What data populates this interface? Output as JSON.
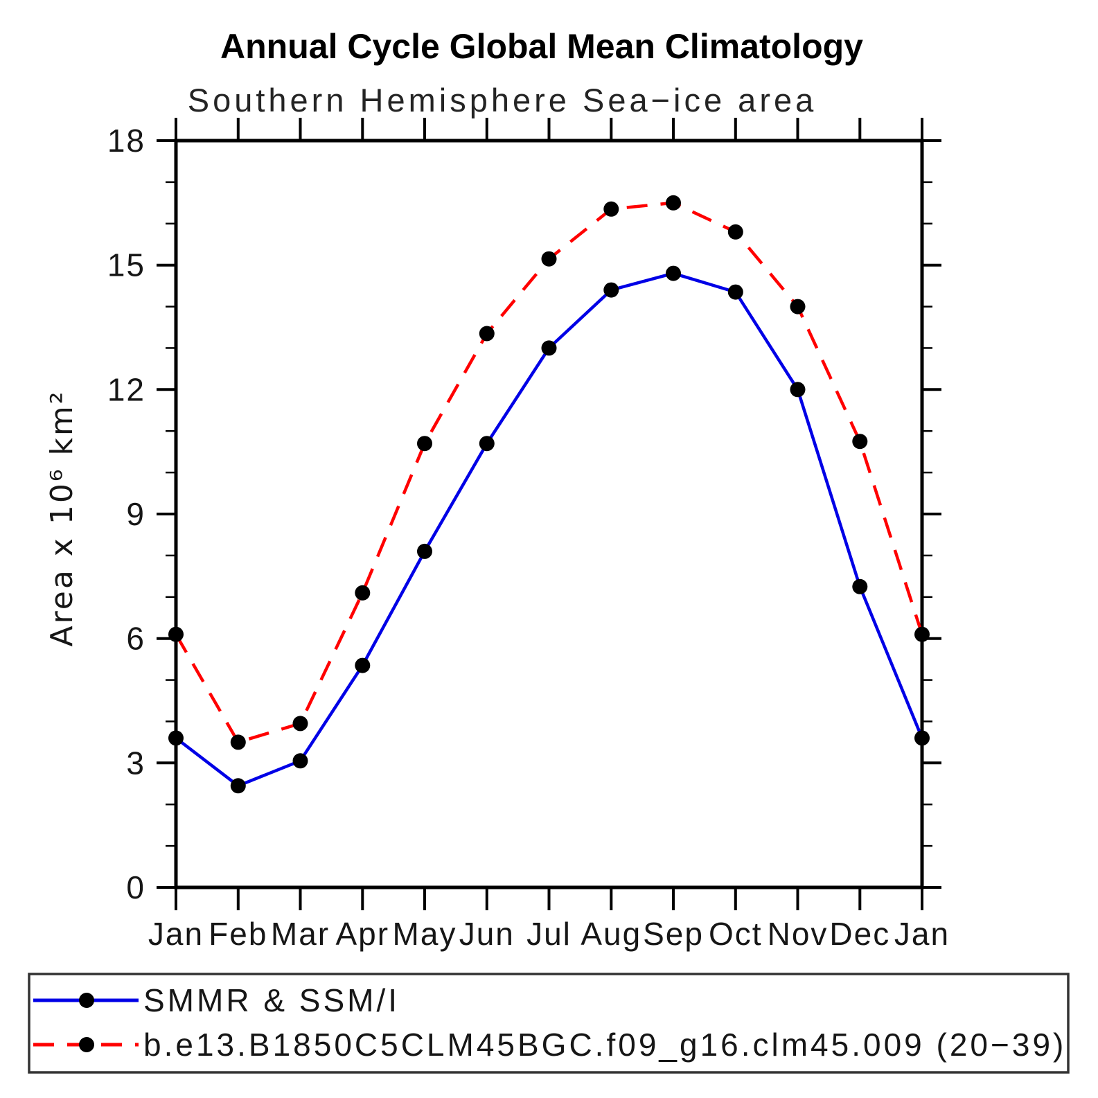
{
  "header": {
    "title": "Annual Cycle Global Mean Climatology",
    "subtitle": "Southern Hemisphere Sea−ice area"
  },
  "chart_data": {
    "type": "line",
    "title": "Annual Cycle Global Mean Climatology",
    "subtitle": "Southern Hemisphere Sea−ice area",
    "categories": [
      "Jan",
      "Feb",
      "Mar",
      "Apr",
      "May",
      "Jun",
      "Jul",
      "Aug",
      "Sep",
      "Oct",
      "Nov",
      "Dec",
      "Jan"
    ],
    "series": [
      {
        "name": "SMMR & SSM/I",
        "color": "#0000e6",
        "line_style": "solid",
        "marker": "filled-circle",
        "marker_color": "#000000",
        "values": [
          3.6,
          2.45,
          3.05,
          5.35,
          8.1,
          10.7,
          13.0,
          14.4,
          14.8,
          14.35,
          12.0,
          7.25,
          3.6
        ]
      },
      {
        "name": "b.e13.B1850C5CLM45BGC.f09_g16.clm45.009 (20−39)",
        "color": "#ff0000",
        "line_style": "dashed",
        "marker": "filled-circle",
        "marker_color": "#000000",
        "values": [
          6.1,
          3.5,
          3.95,
          7.1,
          10.7,
          13.35,
          15.15,
          16.35,
          16.5,
          15.8,
          14.0,
          10.75,
          6.1
        ]
      }
    ],
    "xlabel": "",
    "ylabel": "Area x 10⁶ km²",
    "ylim": [
      0,
      18
    ],
    "ytick_major": [
      0,
      3,
      6,
      9,
      12,
      15,
      18
    ],
    "ytick_labels": [
      "0",
      "3",
      "6",
      "9",
      "12",
      "15",
      "18"
    ],
    "ytick_minor_step": 1,
    "grid": false,
    "axis_color": "#000000",
    "legend_position": "bottom-box",
    "legend_border_color": "#333333"
  }
}
